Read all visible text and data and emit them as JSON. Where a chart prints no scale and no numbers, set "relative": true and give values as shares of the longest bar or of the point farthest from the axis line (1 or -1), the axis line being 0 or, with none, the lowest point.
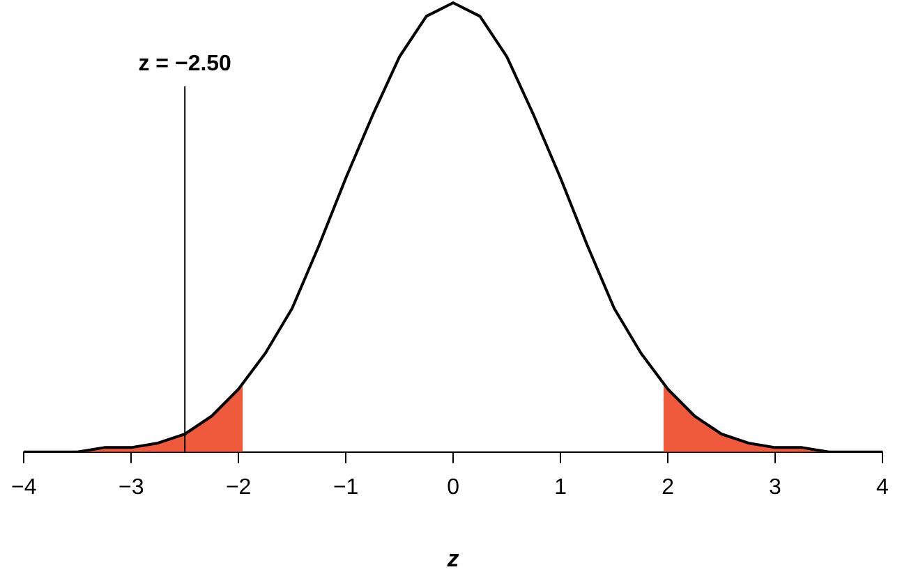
{
  "chart_data": {
    "type": "line",
    "relative": true,
    "xlabel": "z",
    "xlim": [
      -4,
      4
    ],
    "xticks": [
      {
        "value": -4,
        "label": "−4"
      },
      {
        "value": -3,
        "label": "−3"
      },
      {
        "value": -2,
        "label": "−2"
      },
      {
        "value": -1,
        "label": "−1"
      },
      0,
      1,
      2,
      3,
      4
    ],
    "grid": false,
    "marker": "none",
    "line_style": "solid",
    "series": [
      {
        "type": "area",
        "color": "#f05a3c",
        "x": [
          -3.5,
          -3.25,
          -3,
          -2.75,
          -2.5,
          -2.25,
          -1.96
        ],
        "values": [
          0,
          0.01,
          0.01,
          0.02,
          0.04,
          0.08,
          0.15
        ]
      },
      {
        "type": "area",
        "color": "#f05a3c",
        "x": [
          1.96,
          2.25,
          2.5,
          2.75,
          3,
          3.25,
          3.5
        ],
        "values": [
          0.15,
          0.08,
          0.04,
          0.02,
          0.01,
          0.01,
          0
        ]
      },
      {
        "type": "line",
        "color": "#000000",
        "x": [
          -4,
          -3.75,
          -3.5,
          -3.25,
          -3,
          -2.75,
          -2.5,
          -2.25,
          -2,
          -1.75,
          -1.5,
          -1.25,
          -1,
          -0.75,
          -0.5,
          -0.25,
          0,
          0.25,
          0.5,
          0.75,
          1,
          1.25,
          1.5,
          1.75,
          2,
          2.25,
          2.5,
          2.75,
          3,
          3.25,
          3.5,
          3.75,
          4
        ],
        "values": [
          0,
          0,
          0,
          0.01,
          0.01,
          0.02,
          0.04,
          0.08,
          0.14,
          0.22,
          0.32,
          0.46,
          0.61,
          0.75,
          0.88,
          0.97,
          1,
          0.97,
          0.88,
          0.75,
          0.61,
          0.46,
          0.32,
          0.22,
          0.14,
          0.08,
          0.04,
          0.02,
          0.01,
          0.01,
          0,
          0,
          0
        ]
      }
    ],
    "ref_lines": [
      {
        "axis": "x",
        "value": -2.5,
        "label": "z = −2.50",
        "color": "#000000"
      }
    ]
  }
}
